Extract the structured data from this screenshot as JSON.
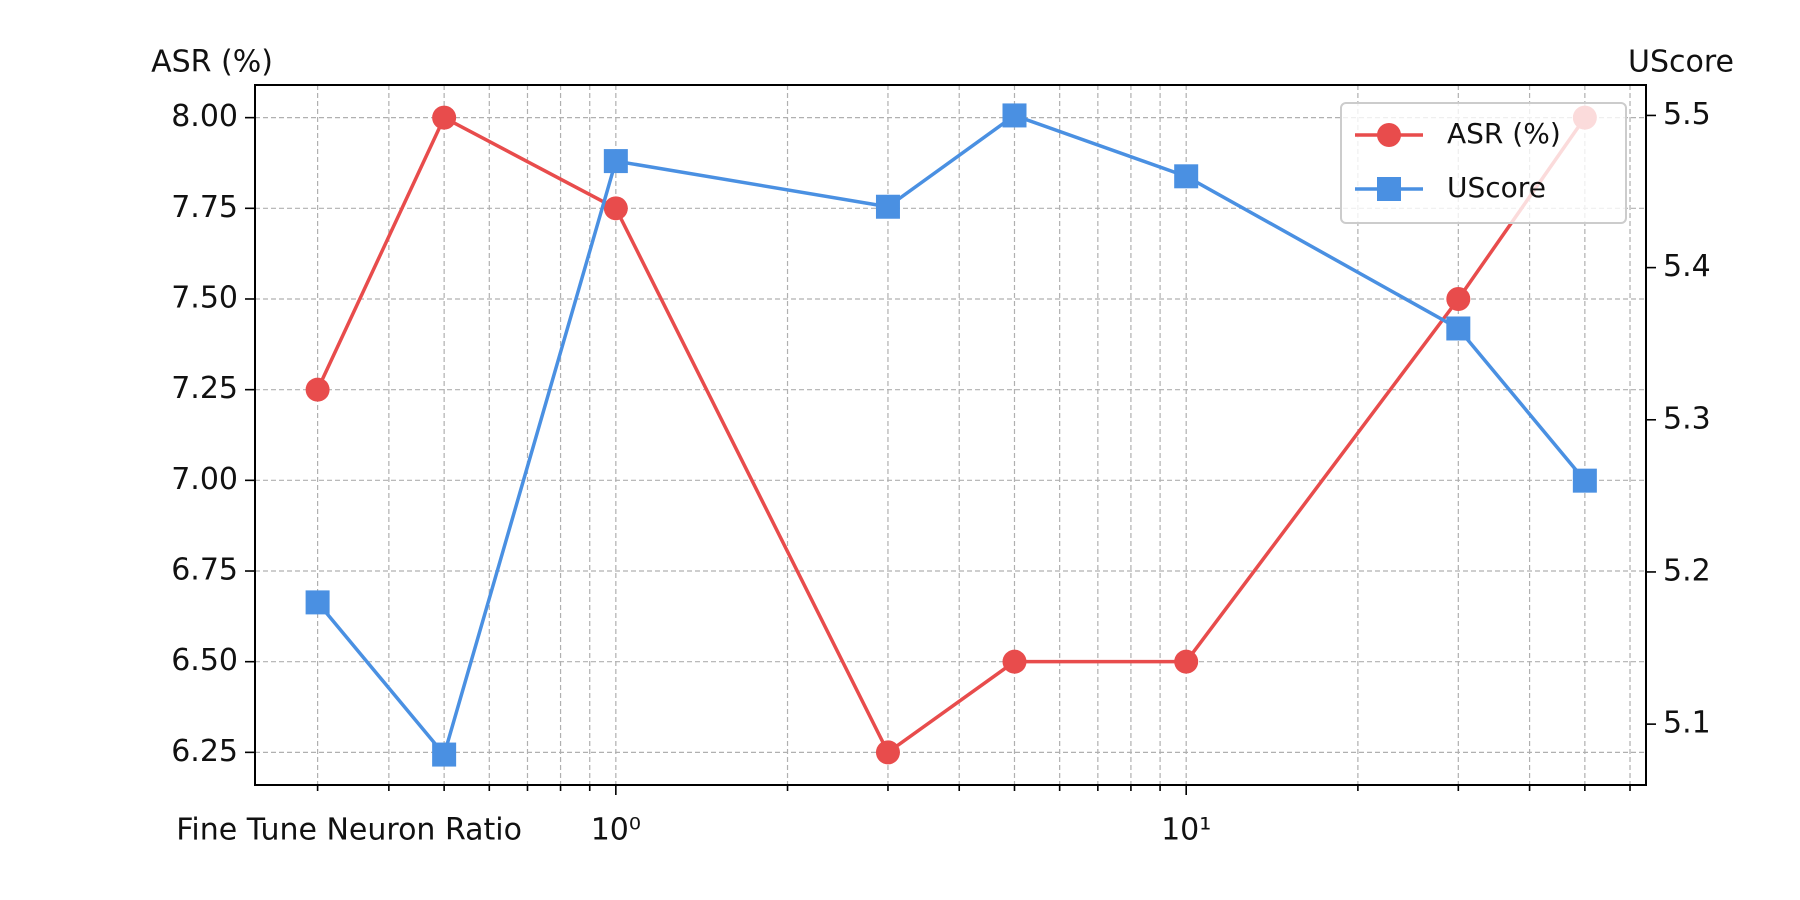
{
  "chart_data": {
    "type": "line",
    "x_label": "Fine Tune Neuron Ratio",
    "y_label": "ASR (%)",
    "y2_label": "UScore",
    "x": [
      0.3,
      0.5,
      1,
      3,
      5,
      10,
      30,
      50
    ],
    "series": [
      {
        "name": "ASR (%)",
        "color": "#e84c4c",
        "marker": "circle",
        "values": [
          7.25,
          8.0,
          7.75,
          6.25,
          6.5,
          6.5,
          7.5,
          8.0
        ]
      },
      {
        "name": "UScore",
        "color": "#4a90e2",
        "marker": "square",
        "axis": "y2",
        "values": [
          5.18,
          5.08,
          5.47,
          5.44,
          5.5,
          5.46,
          5.36,
          5.26
        ]
      }
    ],
    "xscale": "log",
    "xlim": [
      0.233,
      64
    ],
    "xticks": [
      {
        "value": 1,
        "label": "10⁰"
      },
      {
        "value": 10,
        "label": "10¹"
      }
    ],
    "xminorticks": [
      0.3,
      0.4,
      0.5,
      0.6,
      0.7,
      0.8,
      0.9,
      2,
      3,
      4,
      5,
      6,
      7,
      8,
      9,
      20,
      30,
      40,
      50,
      60
    ],
    "ylim": [
      6.16,
      8.09
    ],
    "yticks": [
      6.25,
      {
        "value": 6.5,
        "label": "6.50"
      },
      6.75,
      {
        "value": 7,
        "label": "7.00"
      },
      7.25,
      {
        "value": 7.5,
        "label": "7.50"
      },
      7.75,
      {
        "value": 8,
        "label": "8.00"
      }
    ],
    "y2lim": [
      5.06,
      5.52
    ],
    "y2ticks": [
      5.1,
      5.2,
      5.3,
      5.4,
      5.5
    ],
    "grid": true,
    "legend": "upper right"
  }
}
